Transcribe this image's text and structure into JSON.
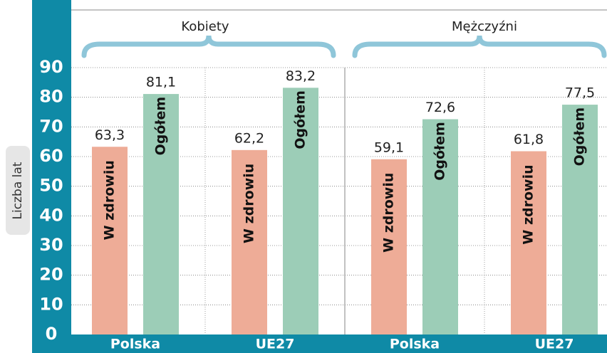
{
  "chart_data": {
    "type": "bar",
    "y_label": "Liczba lat",
    "groups": [
      {
        "label": "Kobiety",
        "span": [
          0,
          1
        ]
      },
      {
        "label": "Mężczyźni",
        "span": [
          2,
          3
        ]
      }
    ],
    "categories": [
      "Polska",
      "UE27",
      "Polska",
      "UE27"
    ],
    "series": [
      {
        "name": "W zdrowiu",
        "color": "#eeac97",
        "values": [
          63.3,
          62.2,
          59.1,
          61.8
        ],
        "value_labels": [
          "63,3",
          "62,2",
          "59,1",
          "61,8"
        ]
      },
      {
        "name": "Ogółem",
        "color": "#9ccdb7",
        "values": [
          81.1,
          83.2,
          72.6,
          77.5
        ],
        "value_labels": [
          "81,1",
          "83,2",
          "72,6",
          "77,5"
        ]
      }
    ],
    "ylim": [
      0,
      90
    ],
    "yticks": [
      0,
      10,
      20,
      30,
      40,
      50,
      60,
      70,
      80,
      90
    ],
    "grid": true
  }
}
